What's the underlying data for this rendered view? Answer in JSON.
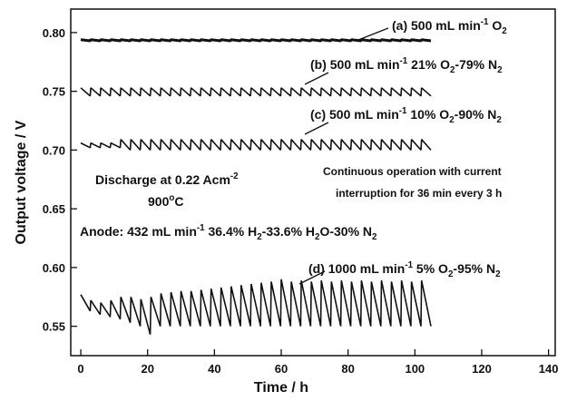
{
  "chart_data": {
    "type": "line",
    "xlabel": "Time / h",
    "ylabel": "Output voltage / V",
    "xlim": [
      -3,
      142
    ],
    "ylim": [
      0.525,
      0.82
    ],
    "xticks": [
      0,
      20,
      40,
      60,
      80,
      100,
      120,
      140
    ],
    "yticks": [
      {
        "value": 0.55,
        "label": "0.55"
      },
      {
        "value": 0.6,
        "label": "0.60"
      },
      {
        "value": 0.65,
        "label": "0.65"
      },
      {
        "value": 0.7,
        "label": "0.70"
      },
      {
        "value": 0.75,
        "label": "0.75"
      },
      {
        "value": 0.8,
        "label": "0.80"
      }
    ],
    "x": [
      0,
      2.8,
      3,
      5.8,
      6,
      8.8,
      9,
      11.8,
      12,
      14.8,
      15,
      17.8,
      18,
      20.8,
      21,
      23.8,
      24,
      26.8,
      27,
      29.8,
      30,
      32.8,
      33,
      35.8,
      36,
      38.8,
      39,
      41.8,
      42,
      44.8,
      45,
      47.8,
      48,
      50.8,
      51,
      53.8,
      54,
      56.8,
      57,
      59.8,
      60,
      62.8,
      63,
      65.8,
      66,
      68.8,
      69,
      71.8,
      72,
      74.8,
      75,
      77.8,
      78,
      80.8,
      81,
      83.8,
      84,
      86.8,
      87,
      89.8,
      90,
      92.8,
      93,
      95.8,
      96,
      98.8,
      99,
      101.8,
      102,
      104.8
    ],
    "series": [
      {
        "color": "#111111",
        "values": [
          0.794,
          0.793,
          0.794,
          0.793,
          0.794,
          0.793,
          0.794,
          0.793,
          0.794,
          0.793,
          0.794,
          0.793,
          0.794,
          0.793,
          0.794,
          0.793,
          0.794,
          0.793,
          0.794,
          0.793,
          0.794,
          0.793,
          0.794,
          0.793,
          0.794,
          0.793,
          0.794,
          0.793,
          0.794,
          0.793,
          0.794,
          0.793,
          0.794,
          0.793,
          0.794,
          0.793,
          0.794,
          0.793,
          0.794,
          0.793,
          0.794,
          0.793,
          0.794,
          0.793,
          0.794,
          0.793,
          0.794,
          0.793,
          0.794,
          0.793,
          0.794,
          0.793,
          0.794,
          0.793,
          0.794,
          0.793,
          0.794,
          0.793,
          0.794,
          0.793,
          0.794,
          0.793,
          0.794,
          0.793,
          0.794,
          0.793,
          0.794,
          0.793,
          0.794,
          0.793
        ]
      },
      {
        "color": "#111111",
        "values": [
          0.753,
          0.746,
          0.753,
          0.746,
          0.753,
          0.746,
          0.753,
          0.746,
          0.753,
          0.746,
          0.753,
          0.746,
          0.753,
          0.746,
          0.753,
          0.746,
          0.753,
          0.746,
          0.753,
          0.746,
          0.753,
          0.746,
          0.753,
          0.746,
          0.753,
          0.746,
          0.753,
          0.746,
          0.753,
          0.746,
          0.753,
          0.746,
          0.753,
          0.746,
          0.753,
          0.746,
          0.753,
          0.746,
          0.753,
          0.746,
          0.753,
          0.746,
          0.753,
          0.746,
          0.753,
          0.746,
          0.753,
          0.746,
          0.753,
          0.746,
          0.753,
          0.746,
          0.753,
          0.746,
          0.753,
          0.746,
          0.753,
          0.746,
          0.753,
          0.746,
          0.753,
          0.746,
          0.753,
          0.746,
          0.753,
          0.746,
          0.753,
          0.746,
          0.753,
          0.746
        ]
      },
      {
        "color": "#111111",
        "values": [
          0.706,
          0.702,
          0.706,
          0.702,
          0.706,
          0.702,
          0.706,
          0.702,
          0.709,
          0.7,
          0.709,
          0.7,
          0.709,
          0.7,
          0.709,
          0.7,
          0.709,
          0.7,
          0.709,
          0.7,
          0.709,
          0.7,
          0.709,
          0.7,
          0.709,
          0.7,
          0.709,
          0.7,
          0.709,
          0.7,
          0.709,
          0.7,
          0.709,
          0.7,
          0.709,
          0.7,
          0.709,
          0.7,
          0.709,
          0.7,
          0.709,
          0.7,
          0.709,
          0.7,
          0.709,
          0.7,
          0.709,
          0.7,
          0.709,
          0.7,
          0.709,
          0.7,
          0.709,
          0.7,
          0.709,
          0.7,
          0.709,
          0.7,
          0.709,
          0.7,
          0.709,
          0.7,
          0.709,
          0.7,
          0.709,
          0.7,
          0.709,
          0.7,
          0.709,
          0.7
        ]
      },
      {
        "color": "#111111",
        "values": [
          0.577,
          0.563,
          0.572,
          0.56,
          0.57,
          0.558,
          0.572,
          0.556,
          0.575,
          0.553,
          0.575,
          0.55,
          0.573,
          0.543,
          0.575,
          0.55,
          0.578,
          0.55,
          0.579,
          0.55,
          0.58,
          0.55,
          0.58,
          0.55,
          0.581,
          0.55,
          0.582,
          0.55,
          0.583,
          0.55,
          0.584,
          0.55,
          0.585,
          0.55,
          0.586,
          0.55,
          0.587,
          0.55,
          0.588,
          0.55,
          0.59,
          0.55,
          0.588,
          0.55,
          0.589,
          0.55,
          0.588,
          0.55,
          0.589,
          0.55,
          0.588,
          0.55,
          0.589,
          0.55,
          0.588,
          0.55,
          0.589,
          0.55,
          0.588,
          0.55,
          0.589,
          0.55,
          0.588,
          0.55,
          0.589,
          0.55,
          0.588,
          0.55,
          0.589,
          0.55
        ]
      }
    ],
    "annotations": [
      {
        "parts": [
          {
            "text": "(a) 500 mL min"
          },
          {
            "text": "-1",
            "script": "super"
          },
          {
            "text": " O"
          },
          {
            "text": "2",
            "script": "sub"
          }
        ]
      },
      {
        "parts": [
          {
            "text": "(b) 500 mL min"
          },
          {
            "text": "-1",
            "script": "super"
          },
          {
            "text": " 21% O"
          },
          {
            "text": "2",
            "script": "sub"
          },
          {
            "text": "-79% N"
          },
          {
            "text": "2",
            "script": "sub"
          }
        ]
      },
      {
        "parts": [
          {
            "text": "(c) 500 mL min"
          },
          {
            "text": "-1",
            "script": "super"
          },
          {
            "text": " 10% O"
          },
          {
            "text": "2",
            "script": "sub"
          },
          {
            "text": "-90% N"
          },
          {
            "text": "2",
            "script": "sub"
          }
        ]
      },
      {
        "parts": [
          {
            "text": "Discharge at 0.22 Acm"
          },
          {
            "text": "-2",
            "script": "super"
          }
        ]
      },
      {
        "parts": [
          {
            "text": "900"
          },
          {
            "text": "o",
            "script": "super"
          },
          {
            "text": "C"
          }
        ]
      },
      {
        "parts": [
          {
            "text": "Continuous operation with current"
          }
        ]
      },
      {
        "parts": [
          {
            "text": "interruption for 36 min every 3 h"
          }
        ]
      },
      {
        "parts": [
          {
            "text": "Anode: 432 mL min"
          },
          {
            "text": "-1",
            "script": "super"
          },
          {
            "text": " 36.4% H"
          },
          {
            "text": "2",
            "script": "sub"
          },
          {
            "text": "-33.6% H"
          },
          {
            "text": "2",
            "script": "sub"
          },
          {
            "text": "O-30% N"
          },
          {
            "text": "2",
            "script": "sub"
          }
        ]
      },
      {
        "parts": [
          {
            "text": "(d) 1000 mL min"
          },
          {
            "text": "-1",
            "script": "super"
          },
          {
            "text": " 5% O"
          },
          {
            "text": "2",
            "script": "sub"
          },
          {
            "text": "-95% N"
          },
          {
            "text": "2",
            "script": "sub"
          }
        ]
      }
    ]
  }
}
